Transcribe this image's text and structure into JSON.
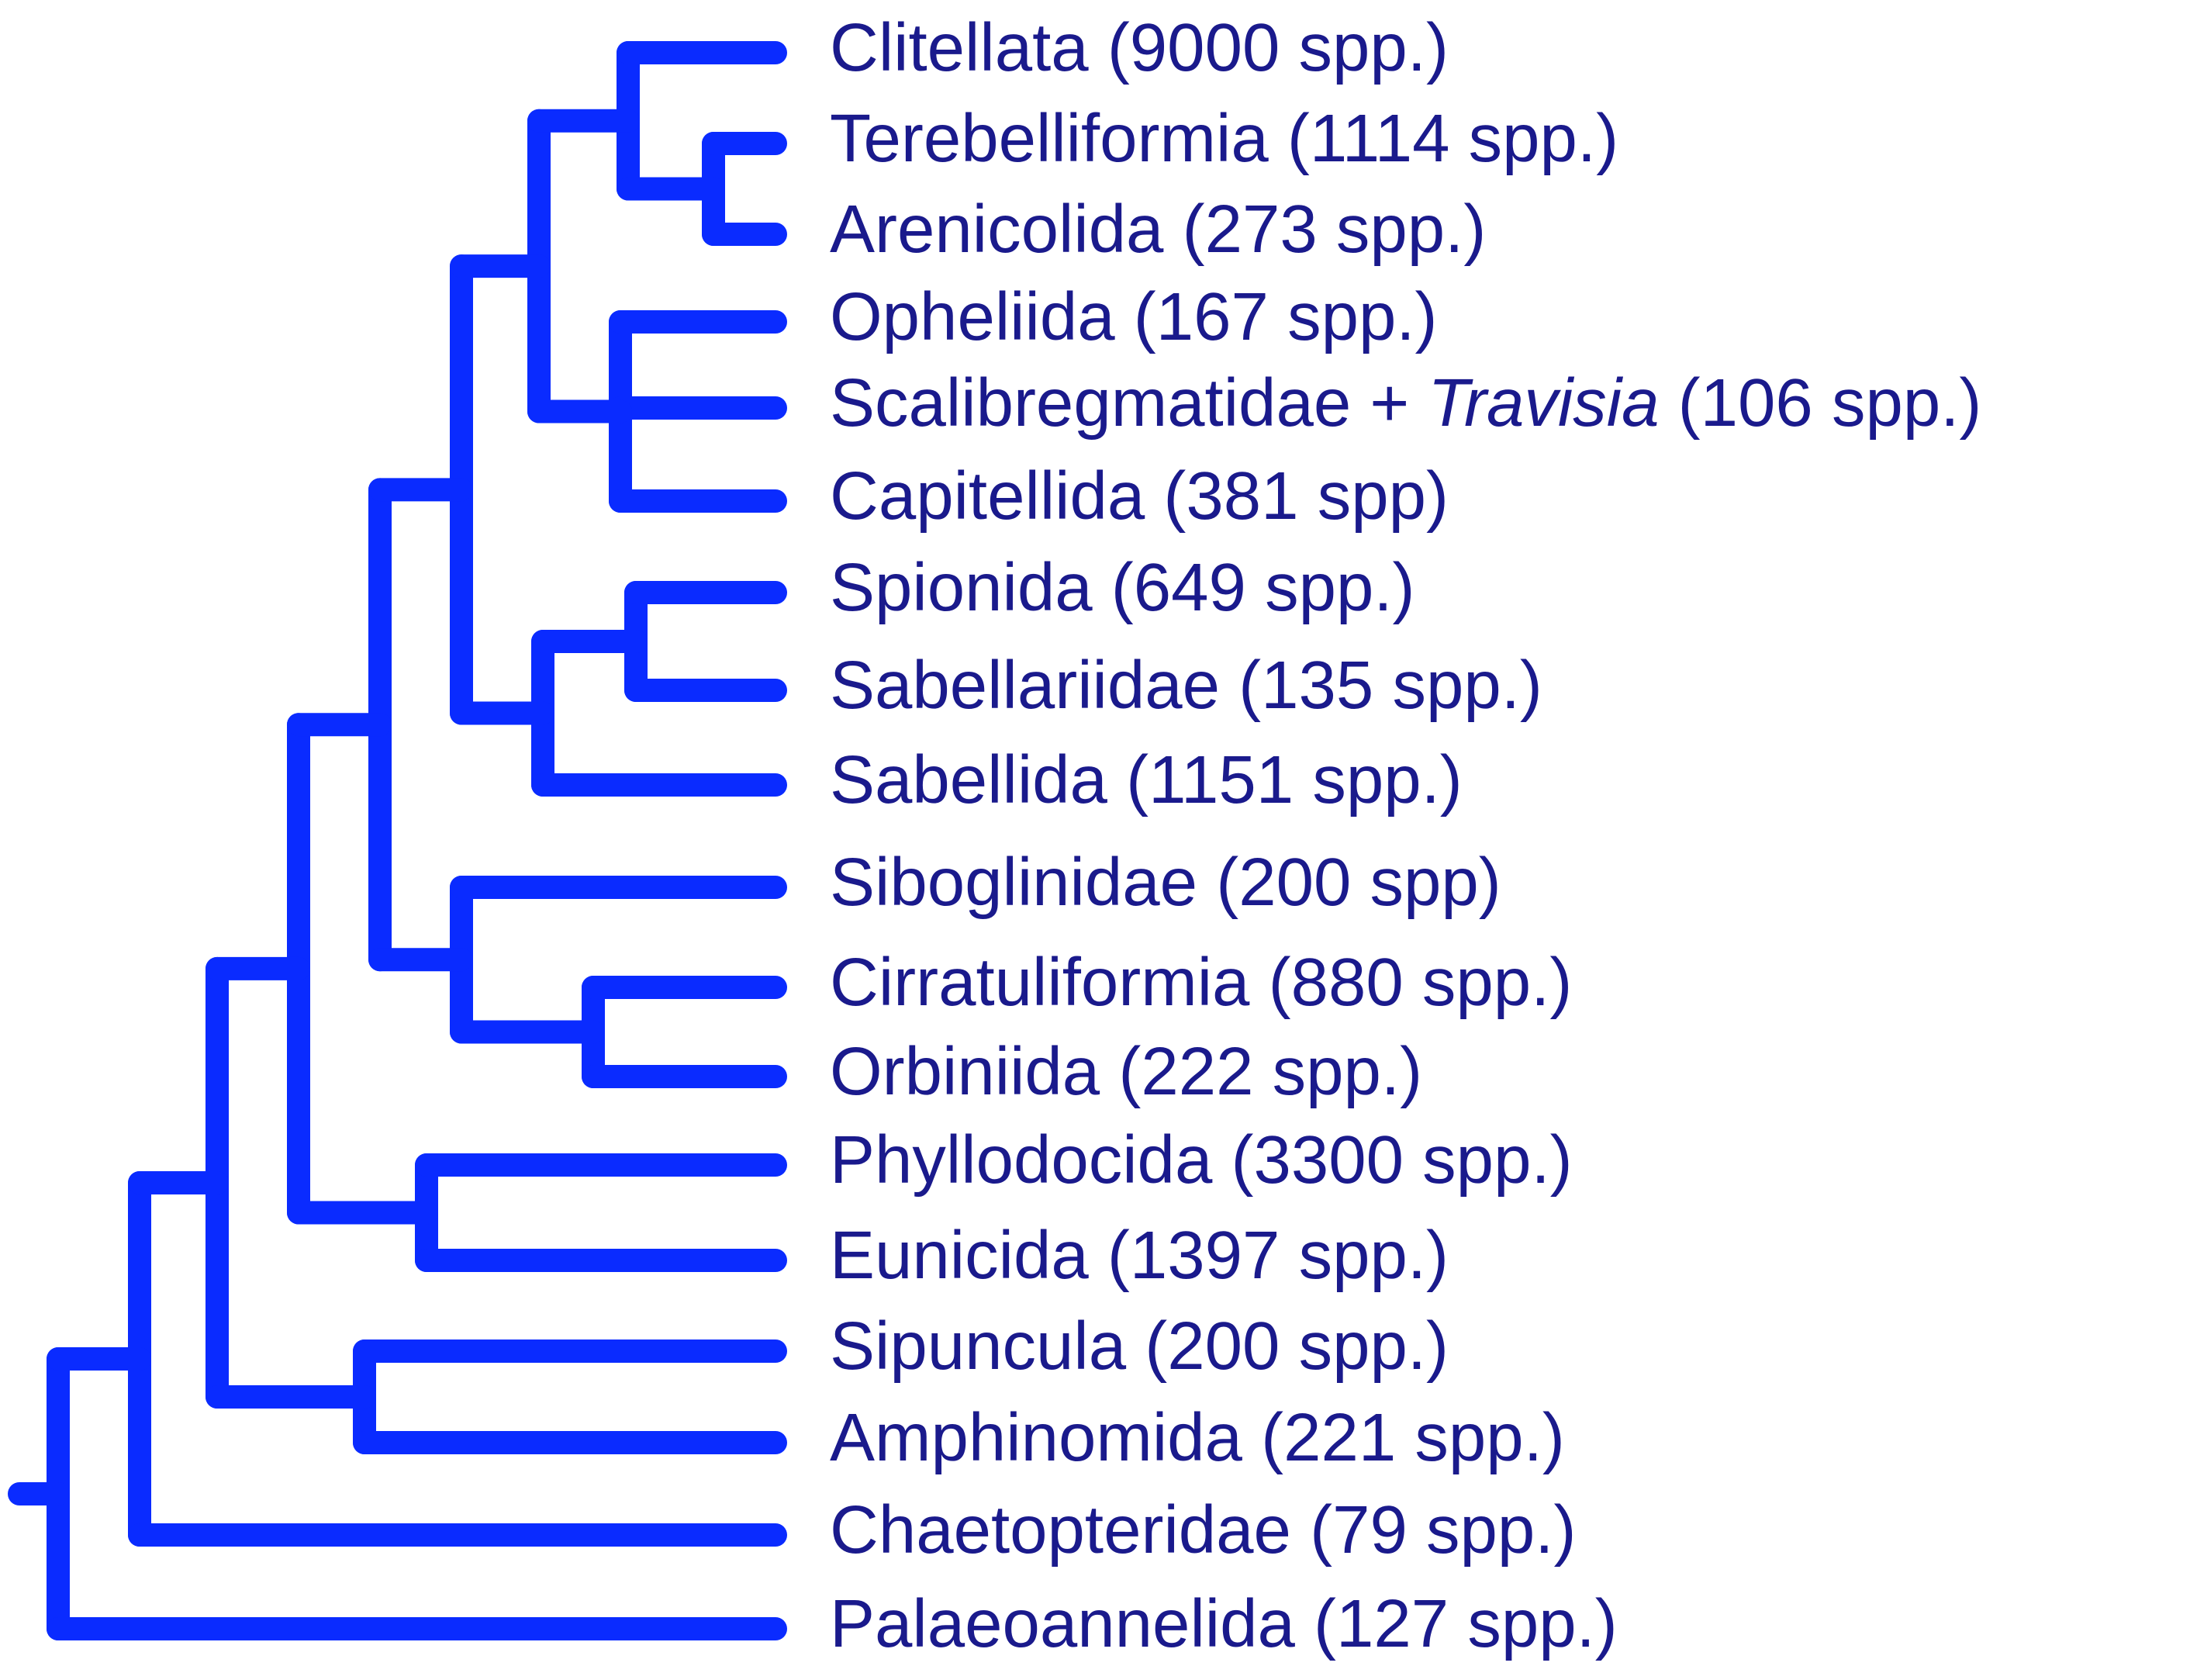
{
  "tree": {
    "line_color": "#0a2bff",
    "label_color": "#1a1a8c",
    "taxa": [
      {
        "id": "clitellata",
        "name": "Clitellata",
        "count": "(9000 spp.)"
      },
      {
        "id": "terebelliformia",
        "name": "Terebelliformia",
        "count": "(1114 spp.)"
      },
      {
        "id": "arenicolida",
        "name": "Arenicolida",
        "count": "(273 spp.)"
      },
      {
        "id": "opheliida",
        "name": "Opheliida",
        "count": "(167 spp.)"
      },
      {
        "id": "scalibregmatidae",
        "name": "Scalibregmatidae +",
        "italic": "Travisia",
        "count": "(106 spp.)"
      },
      {
        "id": "capitellida",
        "name": "Capitellida",
        "count": "(381 spp)"
      },
      {
        "id": "spionida",
        "name": "Spionida",
        "count": "(649 spp.)"
      },
      {
        "id": "sabellariidae",
        "name": "Sabellariidae",
        "count": "(135 spp.)"
      },
      {
        "id": "sabellida",
        "name": "Sabellida",
        "count": "(1151 spp.)"
      },
      {
        "id": "siboglinidae",
        "name": "Siboglinidae",
        "count": "(200 spp)"
      },
      {
        "id": "cirratuliformia",
        "name": "Cirratuliformia",
        "count": "(880 spp.)"
      },
      {
        "id": "orbiniida",
        "name": "Orbiniida",
        "count": "(222 spp.)"
      },
      {
        "id": "phyllodocida",
        "name": "Phyllodocida",
        "count": "(3300 spp.)"
      },
      {
        "id": "eunicida",
        "name": "Eunicida",
        "count": "(1397 spp.)"
      },
      {
        "id": "sipuncula",
        "name": "Sipuncula",
        "count": "(200 spp.)"
      },
      {
        "id": "amphinomida",
        "name": "Amphinomida",
        "count": "(221 spp.)"
      },
      {
        "id": "chaetopteridae",
        "name": "Chaetopteridae",
        "count": "(79 spp.)"
      },
      {
        "id": "palaeoannelida",
        "name": "Palaeoannelida",
        "count": "(127 spp.)"
      }
    ]
  }
}
